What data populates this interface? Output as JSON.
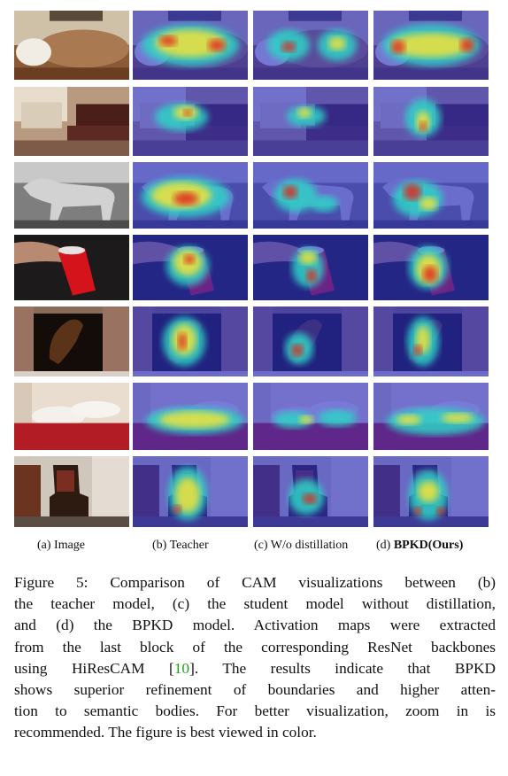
{
  "figure": {
    "columns": [
      {
        "label": "(a) Image",
        "bold_part": ""
      },
      {
        "label": "(b) Teacher",
        "bold_part": ""
      },
      {
        "label": "(c) W/o distillation",
        "bold_part": ""
      },
      {
        "label": "(d) ",
        "bold_part": "BPKD(Ours)"
      }
    ],
    "rows": [
      "sofa-pillows",
      "living-room",
      "horse-grayscale",
      "red-cup",
      "horse-window",
      "bed-pillows",
      "armchair"
    ],
    "colors": {
      "heat_low": "#2a2ec8",
      "heat_mid": "#2fd3c6",
      "heat_high": "#f2e33a",
      "heat_peak": "#e0261c",
      "citation": "#1aa31a"
    }
  },
  "caption": {
    "lines": [
      "Figure 5: Comparison of CAM visualizations between (b)",
      "the teacher model, (c) the student model without distillation,",
      "and (d) the BPKD model. Activation maps were extracted",
      "from the last block of the corresponding ResNet backbones",
      "using HiResCAM [10]. The results indicate that BPKD",
      "shows superior refinement of boundaries and higher atten-",
      "tion to semantic bodies. For better visualization, zoom in is",
      "recommended. The figure is best viewed in color."
    ],
    "citation": "10"
  }
}
